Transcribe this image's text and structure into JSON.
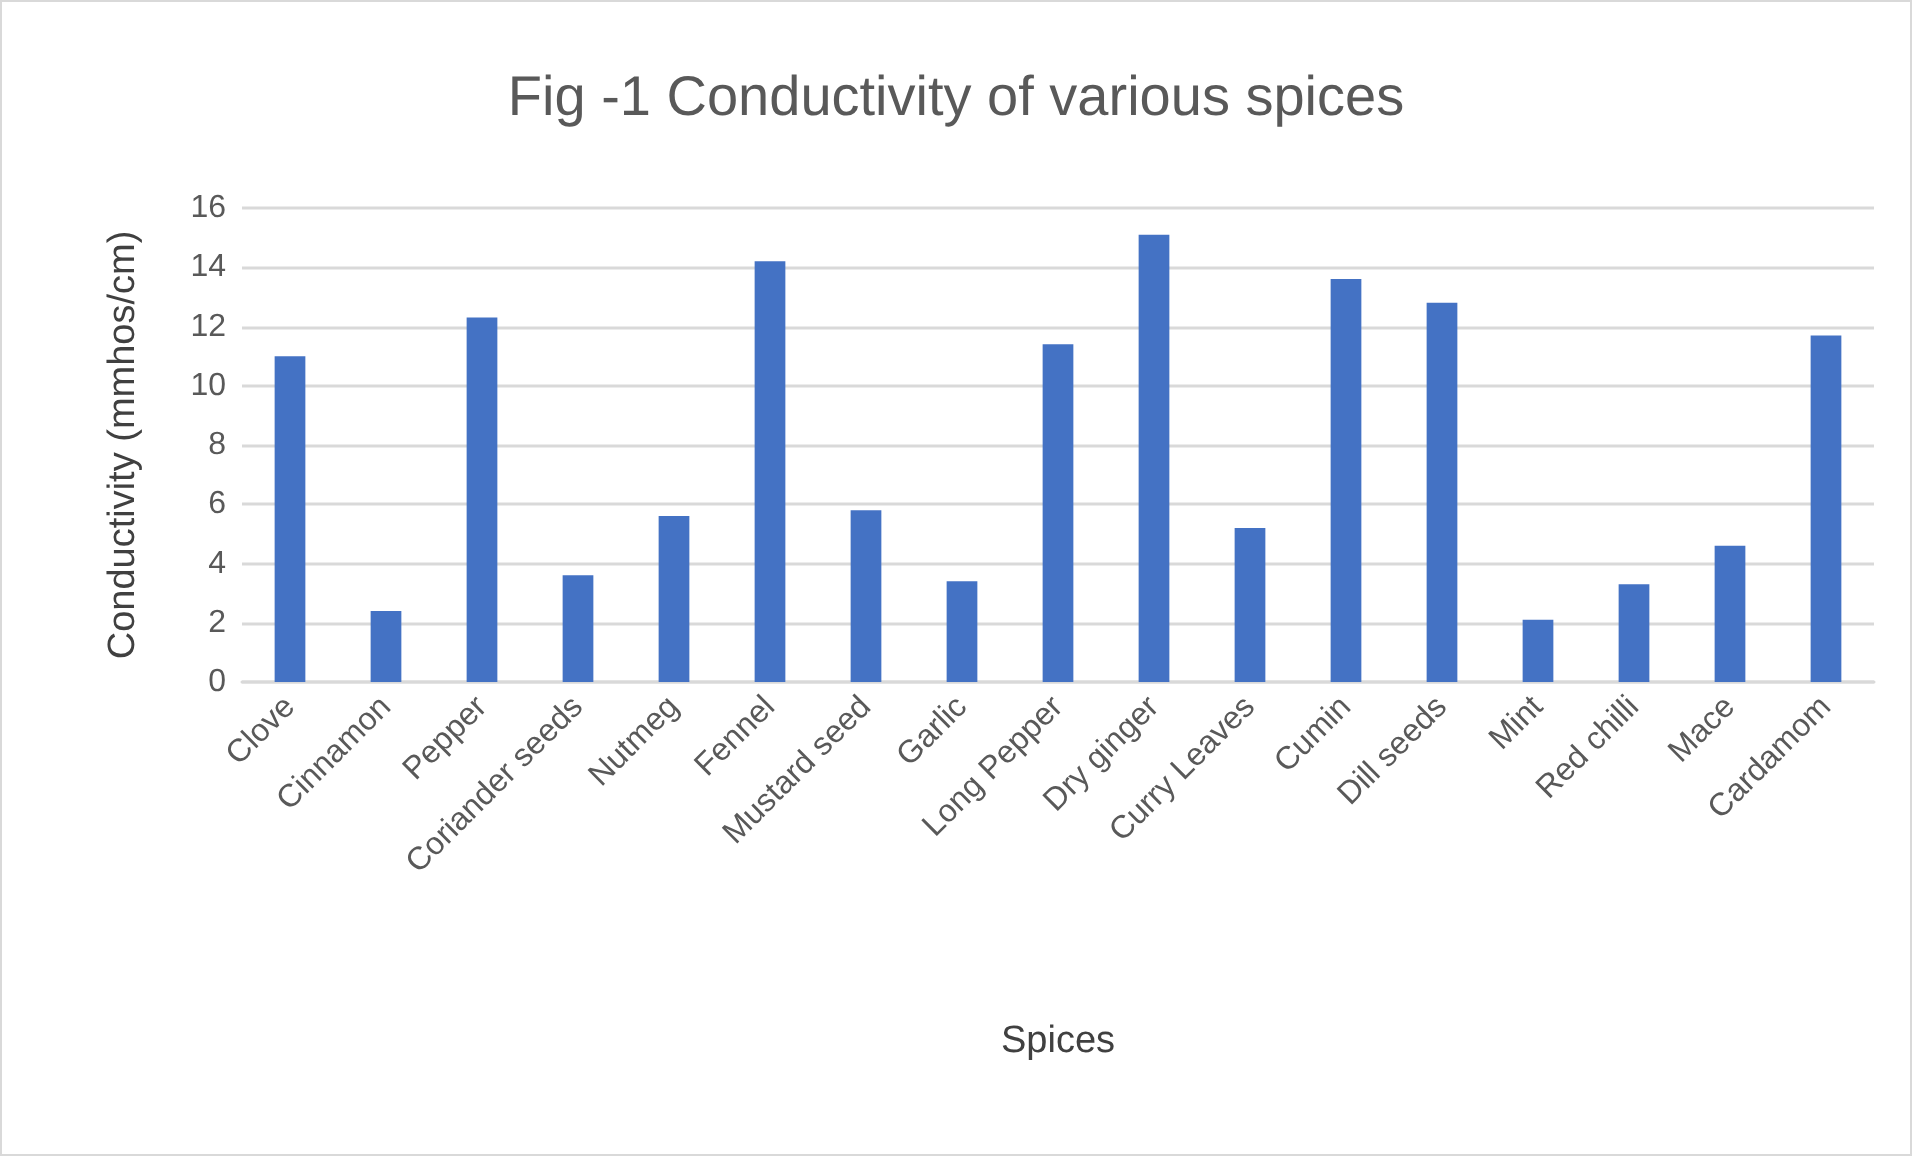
{
  "chart_data": {
    "type": "bar",
    "title": "Fig -1 Conductivity of various spices",
    "xlabel": "Spices",
    "ylabel": "Conductivity (mmhos/cm)",
    "categories": [
      "Clove",
      "Cinnamon",
      "Pepper",
      "Coriander seeds",
      "Nutmeg",
      "Fennel",
      "Mustard seed",
      "Garlic",
      "Long Pepper",
      "Dry ginger",
      "Curry Leaves",
      "Cumin",
      "Dill seeds",
      "Mint",
      "Red chilli",
      "Mace",
      "Cardamom"
    ],
    "values": [
      11.0,
      2.4,
      12.3,
      3.6,
      5.6,
      14.2,
      5.8,
      3.4,
      11.4,
      15.1,
      5.2,
      13.6,
      12.8,
      2.1,
      3.3,
      4.6,
      11.7
    ],
    "color": "#4472c4",
    "ylim": [
      0,
      16
    ],
    "yticks": [
      0,
      2,
      4,
      6,
      8,
      10,
      12,
      14,
      16
    ],
    "grid": "y"
  }
}
